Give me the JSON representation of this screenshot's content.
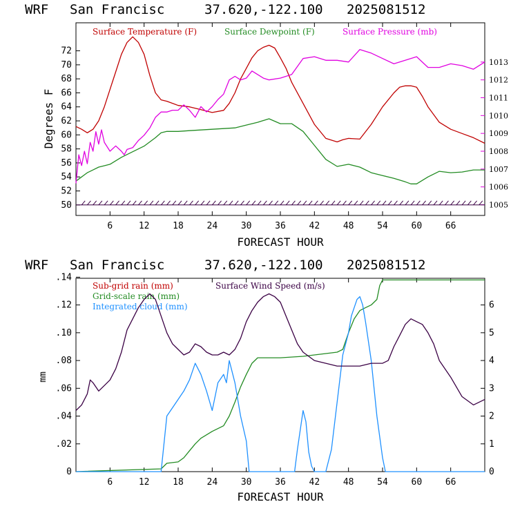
{
  "header": {
    "model": "WRF",
    "location": "San Francisc",
    "coords": "37.620,-122.100",
    "run": "2025081512"
  },
  "colors": {
    "temperature": "#c00000",
    "dewpoint": "#228b22",
    "pressure": "#e000e0",
    "wind_speed": "#3a0044",
    "integrated_cloud": "#1e90ff",
    "subgrid_rain": "#c00000",
    "gridscale_rain": "#228b22"
  },
  "chart_data": [
    {
      "type": "line",
      "xlabel": "FORECAST HOUR",
      "ylabel": "Degrees F",
      "xlim": [
        0,
        72
      ],
      "ylim": [
        48.5,
        76
      ],
      "y2lim": [
        1004.4,
        1015.2
      ],
      "xticks": [
        "6",
        "12",
        "18",
        "24",
        "30",
        "36",
        "42",
        "48",
        "54",
        "60",
        "66"
      ],
      "yticks": [
        "50",
        "52",
        "54",
        "56",
        "58",
        "60",
        "62",
        "64",
        "66",
        "68",
        "70",
        "72"
      ],
      "y2ticks": [
        "1005",
        "1006",
        "1007",
        "1008",
        "1009",
        "1010",
        "1011",
        "1012",
        "1013"
      ],
      "wind_barbs_level": 50,
      "series": [
        {
          "name": "Surface Temperature (F)",
          "axis": "left",
          "x": [
            0,
            1,
            2,
            3,
            4,
            5,
            6,
            7,
            8,
            9,
            10,
            11,
            12,
            13,
            14,
            15,
            16,
            18,
            20,
            22,
            24,
            26,
            27,
            28,
            29,
            30,
            31,
            32,
            33,
            34,
            35,
            36,
            37,
            38,
            40,
            42,
            44,
            46,
            47,
            48,
            50,
            52,
            54,
            56,
            57,
            58,
            59,
            60,
            61,
            62,
            64,
            66,
            68,
            70,
            72
          ],
          "values": [
            61.2,
            60.8,
            60.3,
            60.8,
            62.0,
            64.0,
            66.5,
            69.0,
            71.5,
            73.2,
            74.0,
            73.2,
            71.5,
            68.5,
            66.0,
            65.0,
            64.8,
            64.2,
            64.0,
            63.6,
            63.2,
            63.5,
            64.5,
            66.0,
            68.0,
            69.5,
            71.0,
            72.0,
            72.5,
            72.8,
            72.4,
            71.0,
            69.5,
            67.5,
            64.5,
            61.5,
            59.5,
            59.0,
            59.3,
            59.5,
            59.4,
            61.5,
            64.0,
            66.0,
            66.8,
            67.0,
            67.0,
            66.8,
            65.5,
            64.0,
            61.8,
            60.8,
            60.2,
            59.6,
            58.8
          ],
          "values_axis": "left"
        },
        {
          "name": "Surface Dewpoint (F)",
          "axis": "left",
          "x": [
            0,
            1,
            2,
            3,
            4,
            5,
            6,
            8,
            10,
            12,
            14,
            15,
            16,
            18,
            20,
            24,
            28,
            30,
            32,
            34,
            36,
            38,
            40,
            42,
            44,
            46,
            48,
            50,
            52,
            54,
            56,
            58,
            59,
            60,
            62,
            64,
            66,
            68,
            70,
            72
          ],
          "values": [
            53.4,
            54.0,
            54.6,
            55.0,
            55.4,
            55.6,
            55.8,
            56.8,
            57.6,
            58.4,
            59.6,
            60.3,
            60.5,
            60.5,
            60.6,
            60.8,
            61.0,
            61.4,
            61.8,
            62.3,
            61.6,
            61.6,
            60.5,
            58.5,
            56.5,
            55.5,
            55.8,
            55.4,
            54.6,
            54.2,
            53.8,
            53.3,
            53.0,
            53.0,
            54.0,
            54.8,
            54.6,
            54.7,
            55.0,
            55.0
          ],
          "values_axis": "left"
        },
        {
          "name": "Surface Pressure (mb)",
          "axis": "right",
          "x": [
            0,
            0.5,
            1,
            1.5,
            2,
            2.5,
            3,
            3.5,
            4,
            4.5,
            5,
            6,
            7,
            8,
            8.5,
            9,
            10,
            11,
            12,
            13,
            14,
            15,
            16,
            17,
            18,
            19,
            20,
            21,
            22,
            23,
            24,
            25,
            26,
            27,
            28,
            29,
            30,
            31,
            32,
            33,
            34,
            36,
            38,
            40,
            42,
            44,
            46,
            48,
            50,
            52,
            54,
            56,
            58,
            60,
            62,
            64,
            66,
            68,
            70,
            72
          ],
          "values": [
            1006.2,
            1007.8,
            1007.2,
            1008.0,
            1007.3,
            1008.5,
            1008.0,
            1009.1,
            1008.4,
            1009.2,
            1008.5,
            1008.0,
            1008.3,
            1008.0,
            1007.8,
            1008.1,
            1008.2,
            1008.6,
            1008.9,
            1009.3,
            1009.9,
            1010.2,
            1010.2,
            1010.3,
            1010.3,
            1010.6,
            1010.3,
            1009.9,
            1010.5,
            1010.2,
            1010.5,
            1010.9,
            1011.2,
            1012.0,
            1012.2,
            1012.0,
            1012.1,
            1012.5,
            1012.3,
            1012.1,
            1012.0,
            1012.1,
            1012.3,
            1013.2,
            1013.3,
            1013.1,
            1013.1,
            1013.0,
            1013.7,
            1013.5,
            1013.2,
            1012.9,
            1013.1,
            1013.3,
            1012.7,
            1012.7,
            1012.9,
            1012.8,
            1012.6,
            1013.0
          ],
          "values_axis": "right"
        }
      ]
    },
    {
      "type": "line",
      "xlabel": "FORECAST HOUR",
      "ylabel": "mm",
      "xlim": [
        0,
        72
      ],
      "ylim": [
        0,
        0.1392
      ],
      "y2lim": [
        0,
        6.96
      ],
      "xticks": [
        "6",
        "12",
        "18",
        "24",
        "30",
        "36",
        "42",
        "48",
        "54",
        "60",
        "66"
      ],
      "yticks": [
        "0",
        ".02",
        ".04",
        ".06",
        ".08",
        ".10",
        ".12",
        ".14"
      ],
      "y2ticks": [
        "0",
        "1",
        "2",
        "3",
        "4",
        "5",
        "6"
      ],
      "series": [
        {
          "name": "Sub-grid rain (mm)",
          "axis": "left",
          "x": [],
          "values": []
        },
        {
          "name": "Grid-scale rain (mm)",
          "axis": "left",
          "x": [
            0,
            15,
            16,
            18,
            19,
            20,
            21,
            22,
            24,
            26,
            27,
            28,
            29,
            30,
            31,
            32,
            34,
            36,
            40,
            42,
            44,
            46,
            47,
            48,
            49,
            50,
            51,
            52,
            53,
            53.5,
            54,
            60,
            66,
            72
          ],
          "values": [
            0,
            0.002,
            0.006,
            0.007,
            0.01,
            0.015,
            0.02,
            0.024,
            0.029,
            0.033,
            0.04,
            0.05,
            0.061,
            0.07,
            0.078,
            0.082,
            0.082,
            0.082,
            0.083,
            0.084,
            0.085,
            0.086,
            0.088,
            0.1,
            0.11,
            0.116,
            0.118,
            0.12,
            0.124,
            0.134,
            0.138,
            0.138,
            0.138,
            0.138
          ],
          "values_axis": "left"
        },
        {
          "name": "Integrated cloud (mm)",
          "axis": "right",
          "x": [
            0,
            15,
            16,
            17,
            18,
            19,
            20,
            21,
            22,
            23,
            24,
            25,
            26,
            26.5,
            27,
            27.5,
            28,
            29,
            30,
            30.5,
            36,
            38,
            38.5,
            39,
            40,
            40.5,
            41,
            41.5,
            42,
            42.5,
            43,
            44,
            45,
            46,
            47,
            48,
            48.5,
            49,
            49.5,
            50,
            50.5,
            51,
            52,
            53,
            54,
            54.5,
            72
          ],
          "values": [
            0,
            0,
            2.0,
            2.3,
            2.6,
            2.9,
            3.3,
            3.9,
            3.5,
            2.9,
            2.2,
            3.2,
            3.5,
            3.2,
            4.0,
            3.6,
            3.2,
            2.0,
            1.1,
            0,
            0,
            0,
            0,
            0.8,
            2.2,
            1.8,
            0.7,
            0.2,
            0,
            0,
            0,
            0,
            0.8,
            2.5,
            4.2,
            5.0,
            5.6,
            5.9,
            6.2,
            6.3,
            6.0,
            5.4,
            4.0,
            2.0,
            0.5,
            0,
            0
          ],
          "values_axis": "right"
        },
        {
          "name": "Surface Wind Speed (m/s)",
          "axis": "right",
          "x": [
            0,
            1,
            2,
            2.5,
            3,
            4,
            5,
            6,
            7,
            8,
            9,
            10,
            11,
            12,
            13,
            14,
            15,
            16,
            17,
            18,
            19,
            20,
            21,
            22,
            23,
            24,
            25,
            26,
            27,
            28,
            29,
            30,
            31,
            32,
            33,
            34,
            35,
            36,
            37,
            38,
            39,
            40,
            42,
            44,
            46,
            48,
            50,
            52,
            54,
            55,
            56,
            57,
            58,
            59,
            60,
            61,
            62,
            63,
            64,
            66,
            68,
            70,
            72
          ],
          "values": [
            2.2,
            2.4,
            2.8,
            3.3,
            3.2,
            2.9,
            3.1,
            3.3,
            3.7,
            4.3,
            5.1,
            5.5,
            5.9,
            6.2,
            6.4,
            6.2,
            5.6,
            5.0,
            4.6,
            4.4,
            4.2,
            4.3,
            4.6,
            4.5,
            4.3,
            4.2,
            4.2,
            4.3,
            4.2,
            4.4,
            4.8,
            5.4,
            5.8,
            6.1,
            6.3,
            6.4,
            6.3,
            6.1,
            5.6,
            5.1,
            4.6,
            4.3,
            4.0,
            3.9,
            3.8,
            3.8,
            3.8,
            3.9,
            3.9,
            4.0,
            4.5,
            4.9,
            5.3,
            5.5,
            5.4,
            5.3,
            5.0,
            4.6,
            4.0,
            3.4,
            2.7,
            2.4,
            2.6
          ],
          "values_axis": "right"
        }
      ]
    }
  ]
}
